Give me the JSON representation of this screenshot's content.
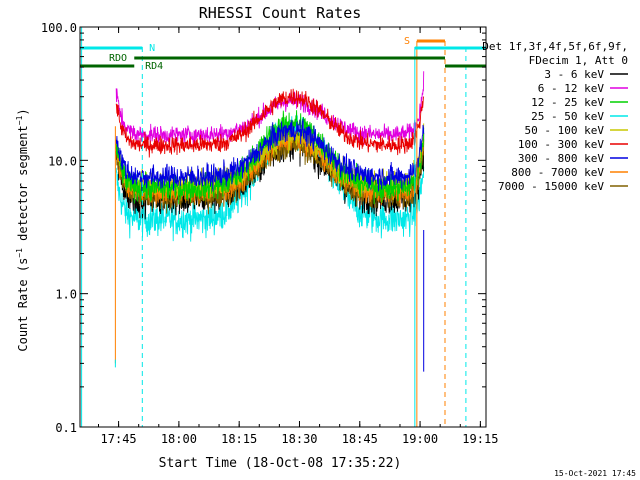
{
  "chart_data": {
    "type": "line",
    "title": "RHESSI Count Rates",
    "xlabel": "Start Time (18-Oct-08 17:35:22)",
    "ylabel_main": "Count Rate (s",
    "ylabel_sup": "−1",
    "ylabel_mid": " detector segment",
    "ylabel_sup2": "−1",
    "ylabel_end": ")",
    "y_scale": "log",
    "ylim": [
      0.1,
      100
    ],
    "xlim_minutes": [
      0,
      101
    ],
    "x_ticks": [
      {
        "label": "17:45",
        "minute": 9.6
      },
      {
        "label": "18:00",
        "minute": 24.6
      },
      {
        "label": "18:15",
        "minute": 39.6
      },
      {
        "label": "18:30",
        "minute": 54.6
      },
      {
        "label": "18:45",
        "minute": 69.6
      },
      {
        "label": "19:00",
        "minute": 84.6
      },
      {
        "label": "19:15",
        "minute": 99.6
      }
    ],
    "y_ticks": [
      {
        "label": "100.0",
        "value": 100
      },
      {
        "label": "10.0",
        "value": 10
      },
      {
        "label": "1.0",
        "value": 1
      },
      {
        "label": "0.1",
        "value": 0.1
      }
    ],
    "legend_header": [
      "Det 1f,3f,4f,5f,6f,9f,",
      "FDecim 1, Att 0"
    ],
    "series": [
      {
        "name": "3 - 6 keV",
        "color": "#000000",
        "base": 5.2,
        "peak": 13.5,
        "noise": 0.13
      },
      {
        "name": "6 - 12 keV",
        "color": "#e000e0",
        "base": 15.5,
        "peak": 28.0,
        "noise": 0.07
      },
      {
        "name": "12 - 25 keV",
        "color": "#00d000",
        "base": 6.2,
        "peak": 19.0,
        "noise": 0.1
      },
      {
        "name": "25 - 50 keV",
        "color": "#00e8e8",
        "base": 3.6,
        "peak": 16.0,
        "noise": 0.13
      },
      {
        "name": "50 - 100 keV",
        "color": "#c8c800",
        "base": 6.6,
        "peak": 15.5,
        "noise": 0.1
      },
      {
        "name": "100 - 300 keV",
        "color": "#e80000",
        "base": 13.0,
        "peak": 30.0,
        "noise": 0.07
      },
      {
        "name": "300 - 800 keV",
        "color": "#0000e0",
        "base": 7.5,
        "peak": 17.0,
        "noise": 0.09
      },
      {
        "name": "800 - 7000 keV",
        "color": "#ff8000",
        "base": 5.8,
        "peak": 14.5,
        "noise": 0.09
      },
      {
        "name": "7000 - 15000 keV",
        "color": "#806000",
        "base": 5.3,
        "peak": 13.0,
        "noise": 0.1
      }
    ],
    "data_start_minute": 9.0,
    "data_end_minute": 85.5,
    "peak_minute": 53.0,
    "annotations": [
      {
        "label": "N",
        "color": "#00e8e8"
      },
      {
        "label": "RDO",
        "color": "#006400"
      },
      {
        "label": "RD4",
        "color": "#006400"
      },
      {
        "label": "S",
        "color": "#ff8000"
      }
    ],
    "footer_timestamp": "15-Oct-2021 17:45"
  }
}
